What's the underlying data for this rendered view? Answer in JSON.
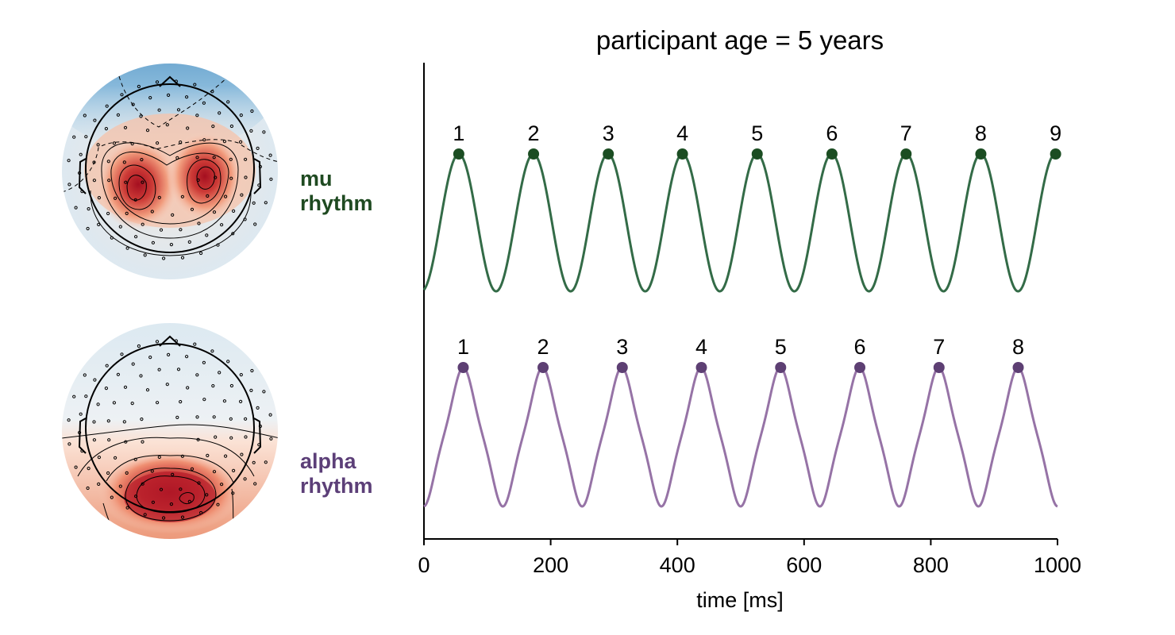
{
  "chart_data": {
    "type": "line",
    "title": "participant age =  5 years",
    "xlabel": "time [ms]",
    "ylabel": "",
    "xlim": [
      0,
      1000
    ],
    "xticks": [
      0,
      200,
      400,
      600,
      800,
      1000
    ],
    "xtick_labels": [
      "0",
      "200",
      "400",
      "600",
      "800",
      "1000"
    ],
    "grid": false,
    "series": [
      {
        "name": "mu rhythm",
        "label_lines": [
          "mu",
          "rhythm"
        ],
        "color": "#336b47",
        "marker_color": "#1b4d22",
        "peak_times": [
          55,
          173,
          291,
          408,
          526,
          644,
          761,
          879,
          997
        ],
        "peak_labels": [
          "1",
          "2",
          "3",
          "4",
          "5",
          "6",
          "7",
          "8",
          "9"
        ],
        "period_ms": 117.7,
        "phase_ms": 55
      },
      {
        "name": "alpha rhythm",
        "label_lines": [
          "alpha",
          "rhythm"
        ],
        "color": "#9673a6",
        "marker_color": "#5d3f73",
        "peak_times": [
          62,
          188,
          313,
          438,
          563,
          688,
          813,
          938
        ],
        "peak_labels": [
          "1",
          "2",
          "3",
          "4",
          "5",
          "6",
          "7",
          "8"
        ],
        "period_ms": 125.1,
        "phase_ms": 62
      }
    ],
    "topomaps": [
      {
        "series": "mu rhythm",
        "pattern": "bilateral central positive (red), frontal negative (blue)"
      },
      {
        "series": "alpha rhythm",
        "pattern": "occipital positive (red)"
      }
    ]
  }
}
